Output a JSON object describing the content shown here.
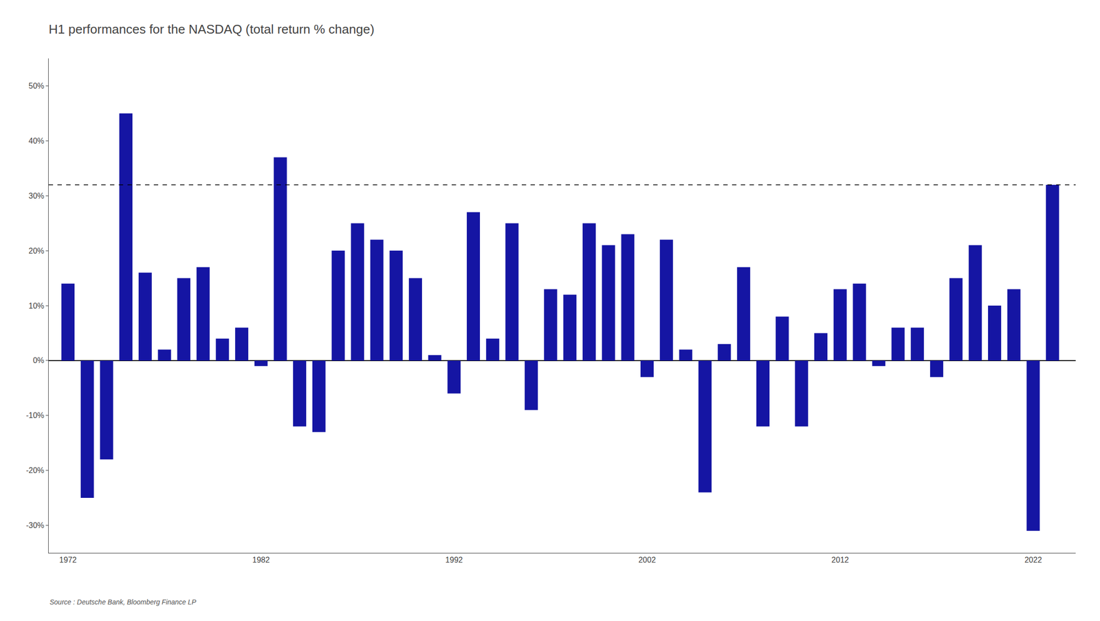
{
  "chart_data": {
    "type": "bar",
    "title": "H1 performances for the NASDAQ (total return % change)",
    "annotations": [
      "Source : Deutsche Bank, Bloomberg Finance LP"
    ],
    "x": [
      1972,
      1973,
      1974,
      1975,
      1976,
      1977,
      1978,
      1979,
      1980,
      1981,
      1982,
      1983,
      1984,
      1985,
      1986,
      1987,
      1988,
      1989,
      1990,
      1991,
      1992,
      1993,
      1994,
      1995,
      1996,
      1997,
      1998,
      1999,
      2000,
      2001,
      2002,
      2003,
      2004,
      2005,
      2006,
      2007,
      2008,
      2009,
      2010,
      2011,
      2012,
      2013,
      2014,
      2015,
      2016,
      2017,
      2018,
      2019,
      2020,
      2021,
      2022,
      2023
    ],
    "values": [
      14,
      -25,
      -18,
      45,
      16,
      2,
      15,
      17,
      4,
      6,
      -1,
      37,
      -12,
      -13,
      20,
      25,
      22,
      20,
      15,
      1,
      -6,
      27,
      4,
      25,
      -9,
      13,
      12,
      25,
      21,
      23,
      -3,
      22,
      2,
      -24,
      3,
      17,
      -12,
      8,
      -12,
      5,
      13,
      14,
      -1,
      6,
      6,
      -3,
      15,
      21,
      10,
      13,
      -31,
      32
    ],
    "color": "#1515a3",
    "hline": 32,
    "xlim": [
      1971.0,
      2024.2
    ],
    "xticks": [
      1972,
      1982,
      1992,
      2002,
      2012,
      2022
    ],
    "ylim": [
      -35,
      55
    ],
    "yticks": [
      {
        "value": -30,
        "label": "-30%"
      },
      {
        "value": -20,
        "label": "-20%"
      },
      {
        "value": -10,
        "label": "-10%"
      },
      {
        "value": 0,
        "label": "0%"
      },
      {
        "value": 10,
        "label": "10%"
      },
      {
        "value": 20,
        "label": "20%"
      },
      {
        "value": 30,
        "label": "30%"
      },
      {
        "value": 40,
        "label": "40%"
      },
      {
        "value": 50,
        "label": "50%"
      }
    ],
    "grid": false
  }
}
